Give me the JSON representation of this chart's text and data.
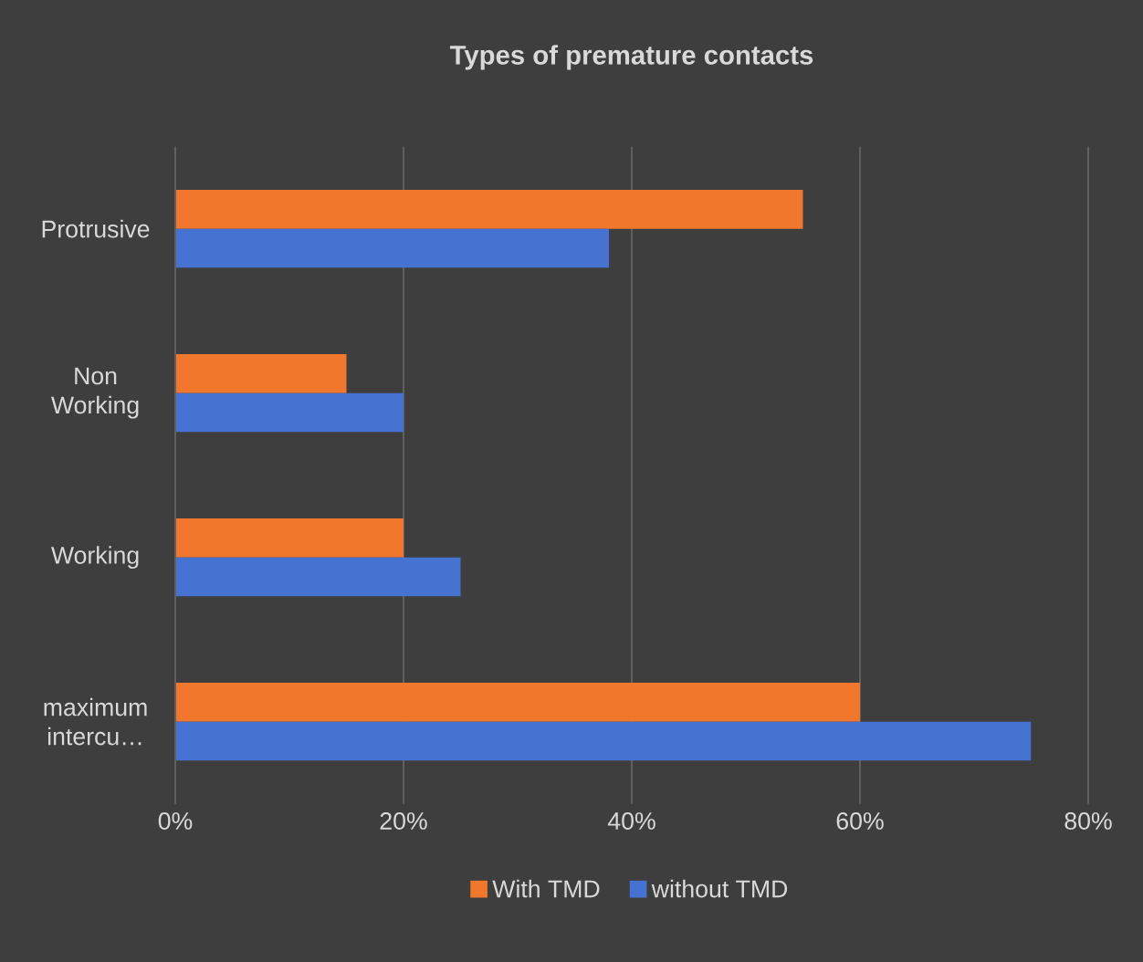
{
  "chart_data": {
    "type": "bar",
    "orientation": "horizontal",
    "title": "Types of premature contacts",
    "categories": [
      "Protrusive",
      "Non Working",
      "Working",
      "maximum intercu…"
    ],
    "series": [
      {
        "name": "With TMD",
        "color": "#f0772b",
        "values": [
          0.55,
          0.15,
          0.2,
          0.6
        ]
      },
      {
        "name": "without TMD",
        "color": "#4673d1",
        "values": [
          0.38,
          0.2,
          0.25,
          0.75
        ]
      }
    ],
    "xlim": [
      0,
      0.8
    ],
    "xticks": [
      {
        "value": 0,
        "label": "0%"
      },
      {
        "value": 0.2,
        "label": "20%"
      },
      {
        "value": 0.4,
        "label": "40%"
      },
      {
        "value": 0.6,
        "label": "60%"
      },
      {
        "value": 0.8,
        "label": "80%"
      }
    ],
    "grid": "x",
    "legend": "bottom"
  }
}
